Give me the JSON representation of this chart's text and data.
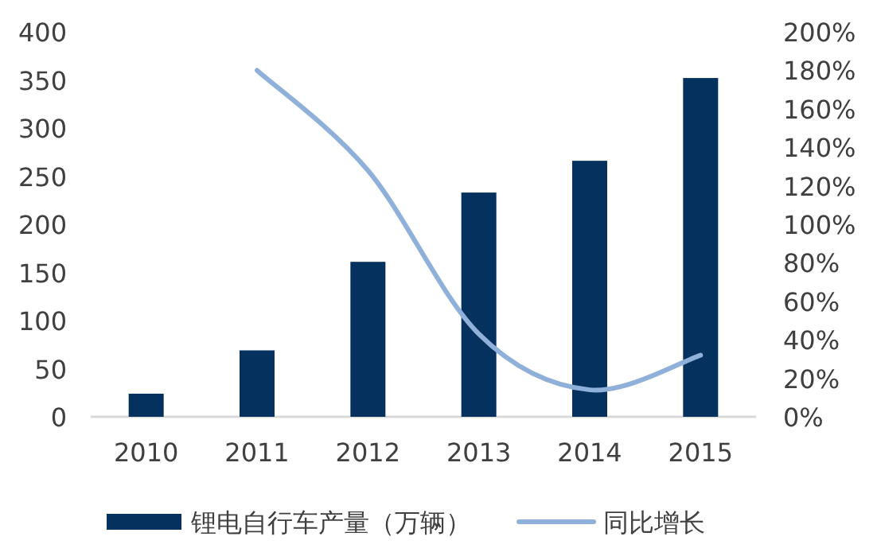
{
  "chart_data": {
    "type": "bar",
    "categories": [
      "2010",
      "2011",
      "2012",
      "2013",
      "2014",
      "2015"
    ],
    "series": [
      {
        "name": "锂电自行车产量（万辆）",
        "color": "#05315f",
        "values": [
          24,
          69,
          161,
          233,
          266,
          352
        ]
      },
      {
        "name": "同比增长",
        "color": "#8fb0d8",
        "type": "line",
        "axis": "y2",
        "values": [
          null,
          180,
          128,
          43,
          14,
          32
        ]
      }
    ],
    "ylim": [
      0,
      400
    ],
    "yticks": [
      0,
      50,
      100,
      150,
      200,
      250,
      300,
      350,
      400
    ],
    "y2lim": [
      0,
      200
    ],
    "y2ticks": [
      {
        "value": 0,
        "label": "0%"
      },
      {
        "value": 20,
        "label": "20%"
      },
      {
        "value": 40,
        "label": "40%"
      },
      {
        "value": 60,
        "label": "60%"
      },
      {
        "value": 80,
        "label": "80%"
      },
      {
        "value": 100,
        "label": "100%"
      },
      {
        "value": 120,
        "label": "120%"
      },
      {
        "value": 140,
        "label": "140%"
      },
      {
        "value": 160,
        "label": "160%"
      },
      {
        "value": 180,
        "label": "180%"
      },
      {
        "value": 200,
        "label": "200%"
      }
    ],
    "legend": "bottom",
    "grid": false
  }
}
